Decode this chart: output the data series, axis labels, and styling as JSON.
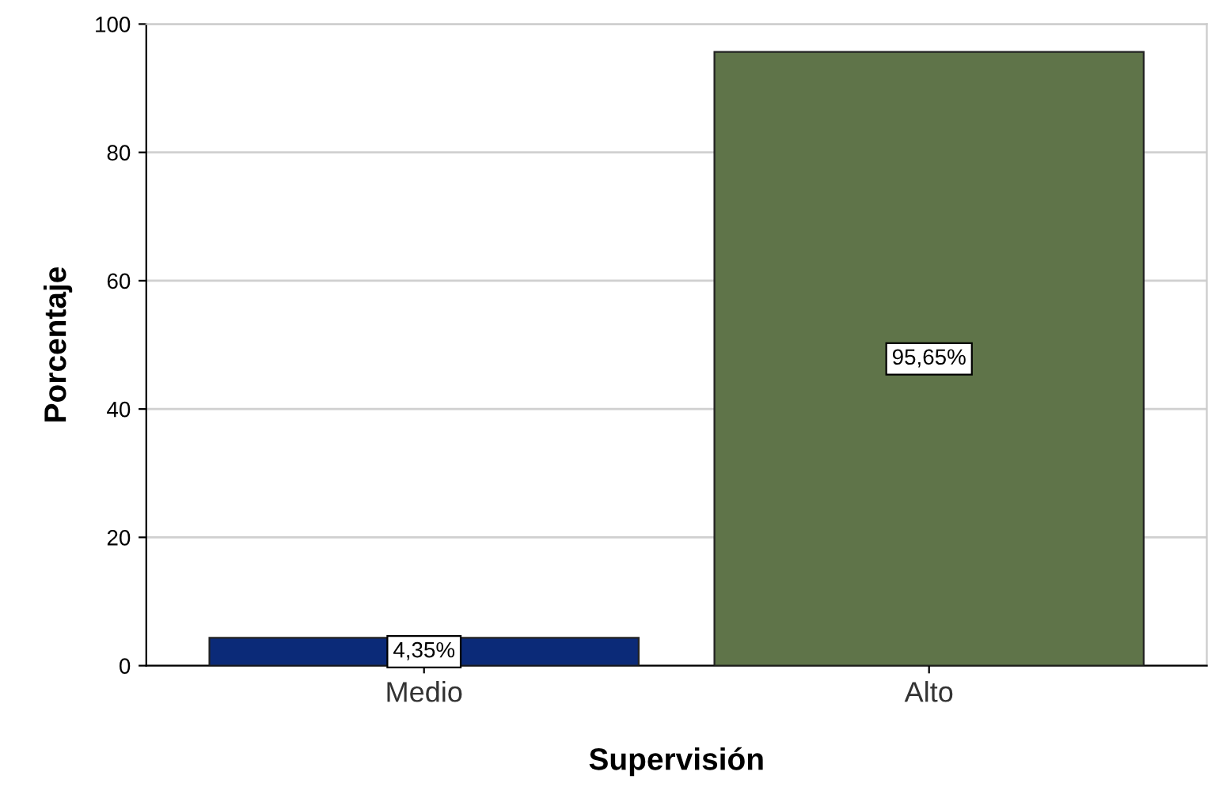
{
  "chart_data": {
    "type": "bar",
    "xlabel": "Supervisión",
    "ylabel": "Porcentaje",
    "categories": [
      "Medio",
      "Alto"
    ],
    "values": [
      4.35,
      95.65
    ],
    "colors": [
      "#0b2a78",
      "#5f7449"
    ],
    "value_labels": [
      "4,35%",
      "95,65%"
    ],
    "ylim": [
      0,
      100
    ],
    "yticks": [
      0,
      20,
      40,
      60,
      80,
      100
    ],
    "grid": "y"
  }
}
